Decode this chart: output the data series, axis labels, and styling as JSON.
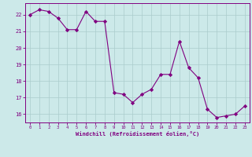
{
  "x": [
    0,
    1,
    2,
    3,
    4,
    5,
    6,
    7,
    8,
    9,
    10,
    11,
    12,
    13,
    14,
    15,
    16,
    17,
    18,
    19,
    20,
    21,
    22,
    23
  ],
  "y": [
    22.0,
    22.3,
    22.2,
    21.8,
    21.1,
    21.1,
    22.2,
    21.6,
    21.6,
    17.3,
    17.2,
    16.7,
    17.2,
    17.5,
    18.4,
    18.4,
    20.4,
    18.8,
    18.2,
    16.3,
    15.8,
    15.9,
    16.0,
    16.5
  ],
  "line_color": "#800080",
  "marker": "D",
  "marker_size": 2.2,
  "bg_color": "#cce9e9",
  "grid_color": "#aacccc",
  "xlabel": "Windchill (Refroidissement éolien,°C)",
  "xlim": [
    -0.5,
    23.5
  ],
  "ylim": [
    15.5,
    22.7
  ],
  "yticks": [
    16,
    17,
    18,
    19,
    20,
    21,
    22
  ],
  "xticks": [
    0,
    1,
    2,
    3,
    4,
    5,
    6,
    7,
    8,
    9,
    10,
    11,
    12,
    13,
    14,
    15,
    16,
    17,
    18,
    19,
    20,
    21,
    22,
    23
  ],
  "tick_color": "#800080",
  "label_color": "#800080",
  "spine_color": "#800080"
}
